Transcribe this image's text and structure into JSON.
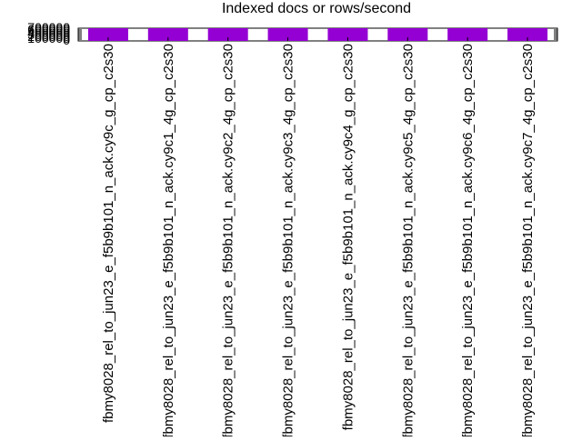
{
  "chart_data": {
    "type": "bar",
    "title": "Indexed docs or rows/second",
    "xlabel": "",
    "ylabel": "",
    "categories": [
      "fbmy8028_rel_to_jun23_e_f5b9b101_n_ack.cy9c_g_cp_c2s30",
      "fbmy8028_rel_to_jun23_e_f5b9b101_n_ack.cy9c1_4g_cp_c2s30",
      "fbmy8028_rel_to_jun23_e_f5b9b101_n_ack.cy9c2_4g_cp_c2s30",
      "fbmy8028_rel_to_jun23_e_f5b9b101_n_ack.cy9c3_4g_cp_c2s30",
      "fbmy8028_rel_to_jun23_e_f5b9b101_n_ack.cy9c4_g_cp_c2s30",
      "fbmy8028_rel_to_jun23_e_f5b9b101_n_ack.cy9c5_4g_cp_c2s30",
      "fbmy8028_rel_to_jun23_e_f5b9b101_n_ack.cy9c6_4g_cp_c2s30",
      "fbmy8028_rel_to_jun23_e_f5b9b101_n_ack.cy9c7_4g_cp_c2s30"
    ],
    "values": [
      700000,
      700000,
      700000,
      700000,
      700000,
      700000,
      700000,
      700000
    ],
    "ylim": [
      0,
      700000
    ],
    "yticks": [
      "0",
      "100000",
      "200000",
      "300000",
      "400000",
      "500000",
      "600000",
      "700000"
    ],
    "bar_color": "#9400d3",
    "grid": false,
    "legend": "none"
  }
}
